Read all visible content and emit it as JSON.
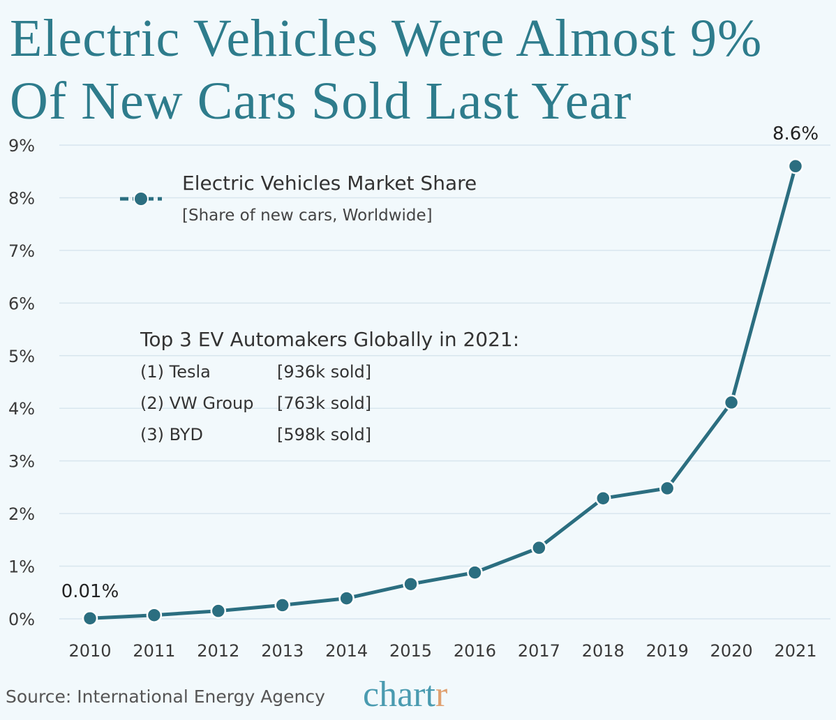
{
  "title": "Electric Vehicles Were Almost 9% Of New Cars Sold Last Year",
  "legend": {
    "series_name": "Electric Vehicles Market Share",
    "subtitle": "[Share of new cars, Worldwide]"
  },
  "top_automakers": {
    "heading": "Top 3 EV Automakers Globally in 2021:",
    "rows": [
      {
        "name": "(1) Tesla",
        "sold": "[936k sold]"
      },
      {
        "name": "(2) VW Group",
        "sold": "[763k sold]"
      },
      {
        "name": "(3) BYD",
        "sold": "[598k sold]"
      }
    ]
  },
  "source": "Source: International Energy Agency",
  "brand": {
    "main": "chart",
    "accent": "r"
  },
  "colors": {
    "line": "#2b6e80",
    "title": "#2e7c8c",
    "grid": "#d8e6ee",
    "background": "#f2f9fc"
  },
  "chart_data": {
    "type": "line",
    "categories": [
      "2010",
      "2011",
      "2012",
      "2013",
      "2014",
      "2015",
      "2016",
      "2017",
      "2018",
      "2019",
      "2020",
      "2021"
    ],
    "series": [
      {
        "name": "Electric Vehicles Market Share",
        "values": [
          0.01,
          0.07,
          0.15,
          0.26,
          0.39,
          0.66,
          0.88,
          1.35,
          2.29,
          2.48,
          4.11,
          8.6
        ]
      }
    ],
    "ylim": [
      0,
      9
    ],
    "yticks": [
      "0%",
      "1%",
      "2%",
      "3%",
      "4%",
      "5%",
      "6%",
      "7%",
      "8%",
      "9%"
    ],
    "annotations": [
      "0.01%",
      "8.6%"
    ],
    "grid": true
  }
}
